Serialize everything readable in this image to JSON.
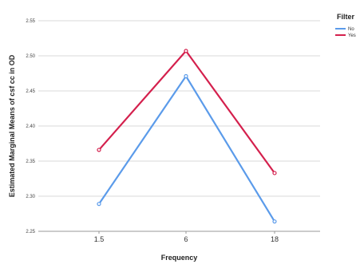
{
  "chart_data": {
    "type": "line",
    "title": "",
    "xlabel": "Frequency",
    "ylabel": "Estimated Marginal Means of csf cc in OD",
    "categories": [
      "1.5",
      "6",
      "18"
    ],
    "ylim": [
      2.25,
      2.55
    ],
    "yticks": [
      "2.25",
      "2.30",
      "2.35",
      "2.40",
      "2.45",
      "2.50",
      "2.55"
    ],
    "grid": true,
    "legend": {
      "title": "Filter",
      "position": "top-right"
    },
    "series": [
      {
        "name": "No",
        "color": "#5b9bea",
        "values": [
          2.289,
          2.471,
          2.264
        ]
      },
      {
        "name": "Yes",
        "color": "#d4204d",
        "values": [
          2.366,
          2.507,
          2.333
        ]
      }
    ]
  }
}
